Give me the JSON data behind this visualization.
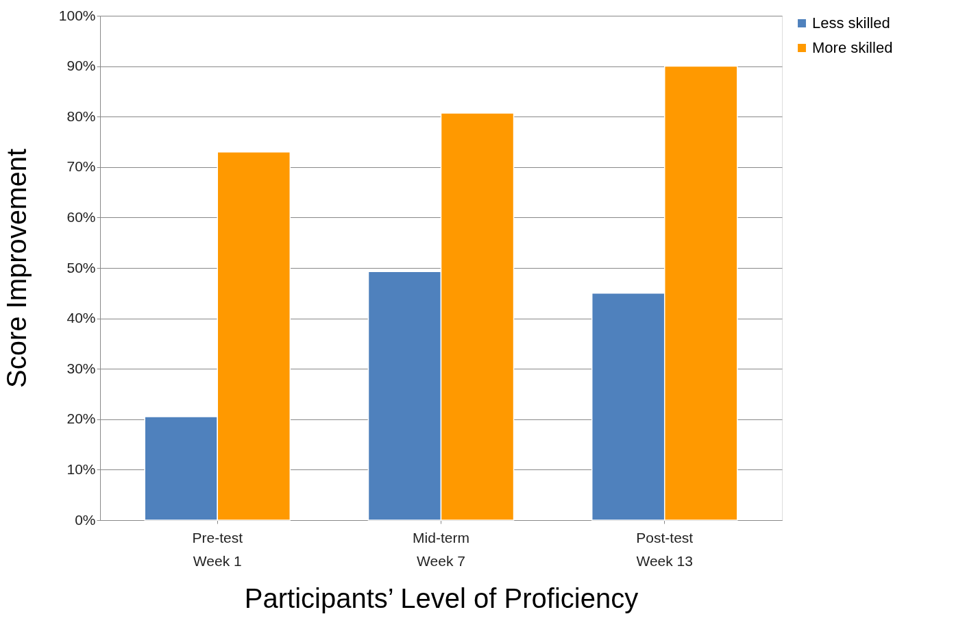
{
  "chart_data": {
    "type": "bar",
    "xlabel": "Participants’ Level of Proficiency",
    "ylabel": "Score Improvement",
    "categories": [
      "Pre-test\nWeek 1",
      "Mid-term\nWeek 7",
      "Post-test\nWeek 13"
    ],
    "series": [
      {
        "name": "Less skilled",
        "color": "#4f81bd",
        "values": [
          20.5,
          49.3,
          45
        ]
      },
      {
        "name": "More skilled",
        "color": "#ff9900",
        "values": [
          73,
          80.7,
          90
        ]
      }
    ],
    "ylim": [
      0,
      100
    ],
    "yticks": [
      {
        "value": 0,
        "label": "0%"
      },
      {
        "value": 10,
        "label": "10%"
      },
      {
        "value": 20,
        "label": "20%"
      },
      {
        "value": 30,
        "label": "30%"
      },
      {
        "value": 40,
        "label": "40%"
      },
      {
        "value": 50,
        "label": "50%"
      },
      {
        "value": 60,
        "label": "60%"
      },
      {
        "value": 70,
        "label": "70%"
      },
      {
        "value": 80,
        "label": "80%"
      },
      {
        "value": 90,
        "label": "90%"
      },
      {
        "value": 100,
        "label": "100%"
      }
    ],
    "grid": "y",
    "legend": "right"
  }
}
